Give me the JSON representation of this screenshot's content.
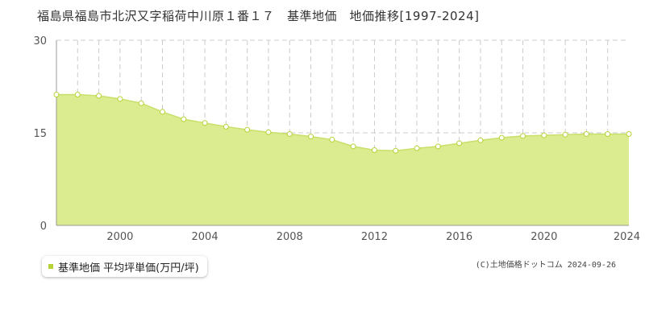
{
  "chart_data": {
    "type": "area",
    "title": "福島県福島市北沢又字稲荷中川原１番１７　基準地価　地価推移[1997-2024]",
    "xlim": [
      1997,
      2024
    ],
    "ylim": [
      0,
      30
    ],
    "x_ticks": [
      "2000",
      "2004",
      "2008",
      "2012",
      "2016",
      "2020",
      "2024"
    ],
    "y_ticks": [
      "0",
      "15",
      "30"
    ],
    "grid": true,
    "legend_position": "bottom-left",
    "series": [
      {
        "name": "基準地価 平均坪単価(万円/坪)",
        "x": [
          1997,
          1998,
          1999,
          2000,
          2001,
          2002,
          2003,
          2004,
          2005,
          2006,
          2007,
          2008,
          2009,
          2010,
          2011,
          2012,
          2013,
          2014,
          2015,
          2016,
          2017,
          2018,
          2019,
          2020,
          2021,
          2022,
          2023,
          2024
        ],
        "values": [
          21.2,
          21.2,
          21.0,
          20.5,
          19.8,
          18.4,
          17.2,
          16.6,
          16.0,
          15.5,
          15.1,
          14.8,
          14.4,
          13.9,
          12.8,
          12.2,
          12.1,
          12.5,
          12.8,
          13.3,
          13.8,
          14.2,
          14.5,
          14.6,
          14.7,
          14.8,
          14.8,
          14.8
        ]
      }
    ],
    "line_color": "#c8e06a",
    "fill_color": "#dbeb8f",
    "point_fill": "#ffffff"
  },
  "legend": {
    "label": "基準地価 平均坪単価(万円/坪)",
    "marker_color": "#b5d334"
  },
  "copyright": "(C)土地価格ドットコム 2024-09-26"
}
